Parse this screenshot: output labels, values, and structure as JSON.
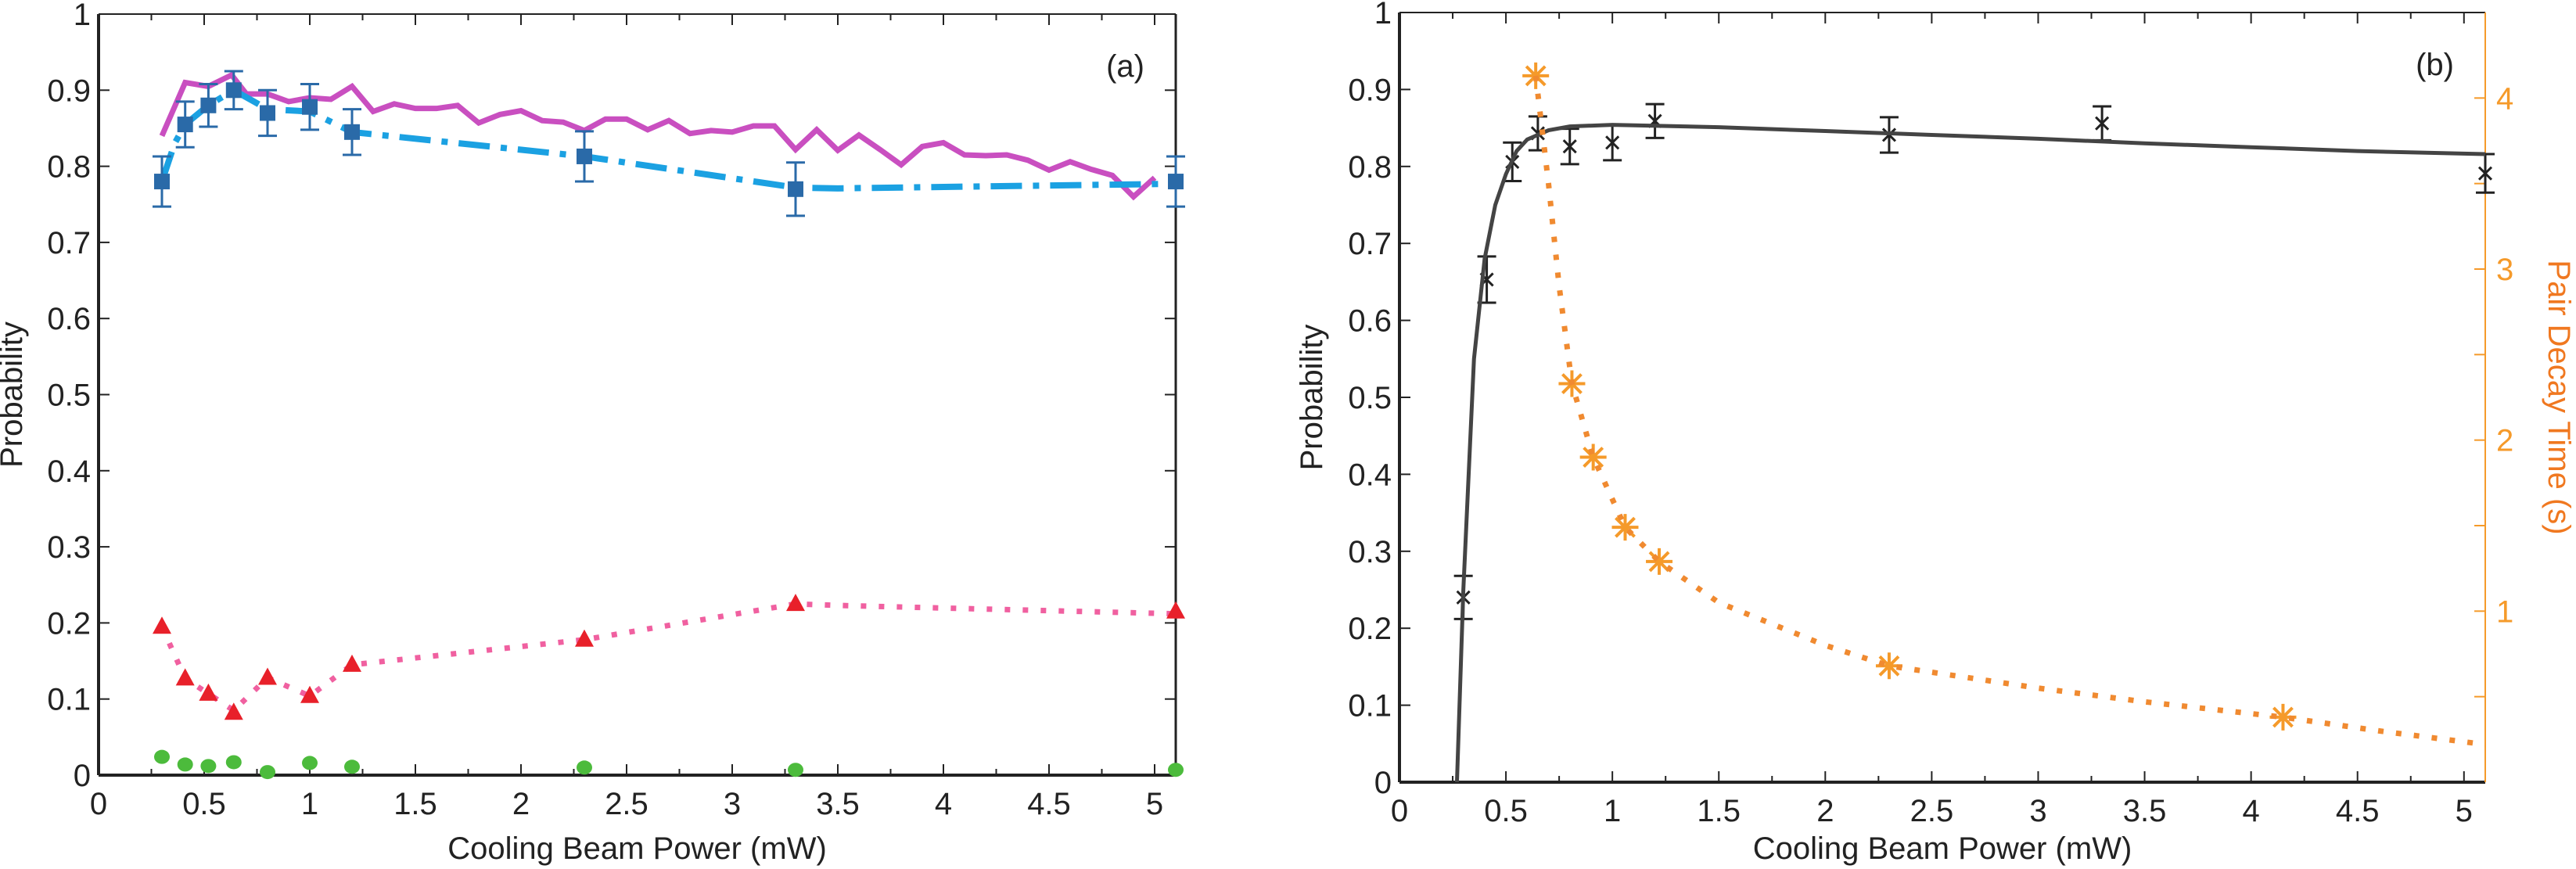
{
  "chart_data": [
    {
      "type": "line",
      "panel_label": "(a)",
      "xlabel": "Cooling Beam Power (mW)",
      "ylabel": "Probability",
      "xlim": [
        0,
        5.1
      ],
      "ylim": [
        0,
        1
      ],
      "xticks": [
        "0",
        "0.5",
        "1",
        "1.5",
        "2",
        "2.5",
        "3",
        "3.5",
        "4",
        "4.5",
        "5"
      ],
      "yticks": [
        "0",
        "0.1",
        "0.2",
        "0.3",
        "0.4",
        "0.5",
        "0.6",
        "0.7",
        "0.8",
        "0.9",
        "1"
      ],
      "series": [
        {
          "name": "magenta-line",
          "style": "solid",
          "color": "#c94fc0",
          "x": [
            0.3,
            0.41,
            0.52,
            0.63,
            0.7,
            0.8,
            0.9,
            1.0,
            1.1,
            1.2,
            1.3,
            1.4,
            1.5,
            1.6,
            1.7,
            1.8,
            1.9,
            2.0,
            2.1,
            2.2,
            2.3,
            2.4,
            2.5,
            2.6,
            2.7,
            2.8,
            2.9,
            3.0,
            3.1,
            3.2,
            3.3,
            3.4,
            3.5,
            3.6,
            3.7,
            3.8,
            3.9,
            4.0,
            4.1,
            4.2,
            4.3,
            4.4,
            4.5,
            4.6,
            4.7,
            4.8,
            4.9,
            5.0
          ],
          "y": [
            0.84,
            0.91,
            0.905,
            0.92,
            0.895,
            0.895,
            0.885,
            0.89,
            0.888,
            0.905,
            0.872,
            0.882,
            0.876,
            0.876,
            0.88,
            0.857,
            0.868,
            0.873,
            0.86,
            0.858,
            0.847,
            0.862,
            0.862,
            0.848,
            0.86,
            0.843,
            0.847,
            0.845,
            0.853,
            0.853,
            0.822,
            0.848,
            0.821,
            0.841,
            0.822,
            0.802,
            0.826,
            0.831,
            0.815,
            0.814,
            0.815,
            0.808,
            0.795,
            0.806,
            0.796,
            0.788,
            0.76,
            0.785
          ]
        },
        {
          "name": "blue-squares",
          "style": "dashdot",
          "marker": "square",
          "color": "#1ba1e2",
          "marker_color": "#2a6aa8",
          "x": [
            0.3,
            0.41,
            0.52,
            0.64,
            0.8,
            1.0,
            1.2,
            2.3,
            3.3,
            5.1
          ],
          "y": [
            0.78,
            0.855,
            0.88,
            0.9,
            0.87,
            0.878,
            0.845,
            0.813,
            0.77,
            0.78
          ],
          "err": [
            0.033,
            0.03,
            0.028,
            0.025,
            0.03,
            0.03,
            0.03,
            0.033,
            0.035,
            0.033
          ],
          "line_x": [
            0.3,
            0.36,
            0.41,
            0.52,
            0.64,
            0.8,
            1.0,
            1.2,
            2.3,
            3.3,
            3.5,
            5.1
          ],
          "line_y": [
            0.78,
            0.83,
            0.855,
            0.88,
            0.9,
            0.875,
            0.872,
            0.845,
            0.813,
            0.772,
            0.771,
            0.777
          ]
        },
        {
          "name": "red-triangles",
          "style": "dotted",
          "marker": "triangle",
          "color": "#f060a0",
          "marker_color": "#e8202a",
          "x": [
            0.3,
            0.41,
            0.52,
            0.64,
            0.8,
            1.0,
            1.2,
            2.3,
            3.3,
            5.1
          ],
          "y": [
            0.195,
            0.127,
            0.107,
            0.082,
            0.128,
            0.104,
            0.145,
            0.178,
            0.225,
            0.215
          ],
          "line_x": [
            0.3,
            0.41,
            0.52,
            0.64,
            0.8,
            1.0,
            1.2,
            2.3,
            3.3,
            3.5,
            5.1
          ],
          "line_y": [
            0.195,
            0.127,
            0.107,
            0.085,
            0.128,
            0.104,
            0.145,
            0.178,
            0.225,
            0.223,
            0.212
          ]
        },
        {
          "name": "green-circles",
          "style": "none",
          "marker": "circle",
          "color": "#4cbb3c",
          "x": [
            0.3,
            0.41,
            0.52,
            0.64,
            0.8,
            1.0,
            1.2,
            2.3,
            3.3,
            5.1
          ],
          "y": [
            0.024,
            0.014,
            0.012,
            0.017,
            0.004,
            0.016,
            0.011,
            0.01,
            0.007,
            0.007
          ]
        }
      ]
    },
    {
      "type": "line",
      "panel_label": "(b)",
      "xlabel": "Cooling Beam Power (mW)",
      "ylabel": "Probability",
      "y2label": "Pair Decay Time (s)",
      "xlim": [
        0,
        5.1
      ],
      "ylim": [
        0,
        1
      ],
      "y2lim": [
        0,
        4.5
      ],
      "xticks": [
        "0",
        "0.5",
        "1",
        "1.5",
        "2",
        "2.5",
        "3",
        "3.5",
        "4",
        "4.5",
        "5"
      ],
      "yticks": [
        "0",
        "0.1",
        "0.2",
        "0.3",
        "0.4",
        "0.5",
        "0.6",
        "0.7",
        "0.8",
        "0.9",
        "1"
      ],
      "y2ticks": [
        "1",
        "2",
        "3",
        "4"
      ],
      "series": [
        {
          "name": "black-x-data",
          "marker": "x",
          "color": "#222222",
          "x": [
            0.3,
            0.41,
            0.53,
            0.65,
            0.8,
            1.0,
            1.2,
            2.3,
            3.3,
            5.1
          ],
          "y": [
            0.24,
            0.653,
            0.806,
            0.843,
            0.826,
            0.831,
            0.859,
            0.841,
            0.856,
            0.791
          ],
          "err": [
            0.028,
            0.03,
            0.025,
            0.022,
            0.023,
            0.023,
            0.022,
            0.023,
            0.022,
            0.025
          ]
        },
        {
          "name": "black-fit",
          "style": "solid",
          "color": "#444444",
          "x": [
            0.27,
            0.3,
            0.35,
            0.4,
            0.45,
            0.5,
            0.55,
            0.6,
            0.7,
            0.8,
            1.0,
            1.5,
            2.0,
            2.5,
            3.0,
            3.5,
            4.0,
            4.5,
            5.1
          ],
          "y": [
            0,
            0.25,
            0.55,
            0.68,
            0.75,
            0.79,
            0.82,
            0.835,
            0.847,
            0.852,
            0.854,
            0.851,
            0.846,
            0.841,
            0.836,
            0.83,
            0.825,
            0.82,
            0.816
          ]
        },
        {
          "name": "orange-stars",
          "axis": "right",
          "marker": "asterisk",
          "color": "#f59a2a",
          "x": [
            0.64,
            0.81,
            0.91,
            1.06,
            1.22,
            2.3,
            4.15
          ],
          "y": [
            4.13,
            2.33,
            1.9,
            1.49,
            1.29,
            0.68,
            0.38
          ]
        },
        {
          "name": "orange-dotted-fit",
          "axis": "right",
          "style": "dotted",
          "color": "#f08a30",
          "x": [
            0.64,
            0.7,
            0.75,
            0.81,
            0.91,
            1.06,
            1.22,
            1.5,
            2.0,
            2.3,
            3.0,
            3.5,
            4.15,
            4.6,
            5.1
          ],
          "y": [
            4.13,
            3.5,
            2.9,
            2.33,
            1.9,
            1.49,
            1.29,
            1.05,
            0.8,
            0.68,
            0.55,
            0.47,
            0.38,
            0.3,
            0.22
          ]
        }
      ]
    }
  ]
}
